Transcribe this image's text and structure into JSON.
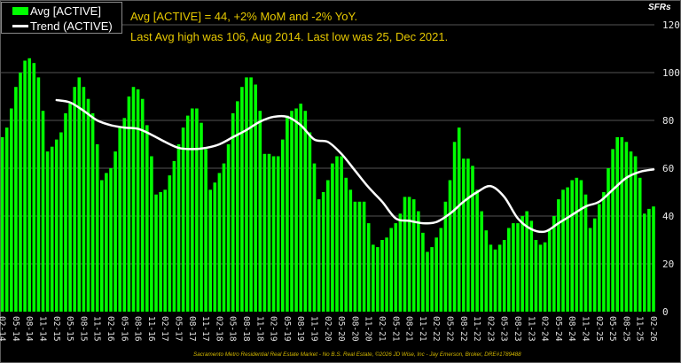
{
  "chart_data": {
    "type": "bar",
    "title_lines": [
      "Avg [ACTIVE] = 44, +2% MoM and -2% YoY.",
      "Last Avg high was 106, Aug 2014. Last low was 25, Dec 2021."
    ],
    "ylabel": "SFRs",
    "ylim": [
      0,
      120
    ],
    "yticks": [
      0,
      20,
      40,
      60,
      80,
      100,
      120
    ],
    "grid": true,
    "y_axis_side": "right",
    "legend_placement": "top-left",
    "colors": {
      "bar": "#00ff00",
      "trend": "#ffffff",
      "annotation": "#e6c800",
      "background": "#000000"
    },
    "categories": [
      "02-14",
      "03-14",
      "04-14",
      "05-14",
      "06-14",
      "07-14",
      "08-14",
      "09-14",
      "10-14",
      "11-14",
      "12-14",
      "01-15",
      "02-15",
      "03-15",
      "04-15",
      "05-15",
      "06-15",
      "07-15",
      "08-15",
      "09-15",
      "10-15",
      "11-15",
      "12-15",
      "01-16",
      "02-16",
      "03-16",
      "04-16",
      "05-16",
      "06-16",
      "07-16",
      "08-16",
      "09-16",
      "10-16",
      "11-16",
      "12-16",
      "01-17",
      "02-17",
      "03-17",
      "04-17",
      "05-17",
      "06-17",
      "07-17",
      "08-17",
      "09-17",
      "10-17",
      "11-17",
      "12-17",
      "01-18",
      "02-18",
      "03-18",
      "04-18",
      "05-18",
      "06-18",
      "07-18",
      "08-18",
      "09-18",
      "10-18",
      "11-18",
      "12-18",
      "01-19",
      "02-19",
      "03-19",
      "04-19",
      "05-19",
      "06-19",
      "07-19",
      "08-19",
      "09-19",
      "10-19",
      "11-19",
      "12-19",
      "01-20",
      "02-20",
      "03-20",
      "04-20",
      "05-20",
      "06-20",
      "07-20",
      "08-20",
      "09-20",
      "10-20",
      "11-20",
      "12-20",
      "01-21",
      "02-21",
      "03-21",
      "04-21",
      "05-21",
      "06-21",
      "07-21",
      "08-21",
      "09-21",
      "10-21",
      "11-21",
      "12-21",
      "01-22",
      "02-22",
      "03-22",
      "04-22",
      "05-22",
      "06-22",
      "07-22",
      "08-22",
      "09-22",
      "10-22",
      "11-22",
      "12-22",
      "01-23",
      "02-23",
      "03-23",
      "04-23",
      "05-23",
      "06-23",
      "07-23",
      "08-23",
      "09-23",
      "10-23",
      "11-23",
      "12-23",
      "01-24",
      "02-24",
      "03-24",
      "04-24",
      "05-24",
      "06-24",
      "07-24",
      "08-24",
      "09-24",
      "10-24",
      "11-24",
      "12-24",
      "01-25",
      "02-25",
      "03-25",
      "04-25",
      "05-25",
      "06-25",
      "07-25",
      "08-25",
      "09-25",
      "10-25",
      "11-25",
      "12-25",
      "01-26",
      "02-26"
    ],
    "series": [
      {
        "name": "Avg [ACTIVE]",
        "type": "bar",
        "values": [
          73,
          77,
          85,
          94,
          100,
          105,
          106,
          104,
          98,
          84,
          67,
          69,
          72,
          75,
          83,
          87,
          94,
          98,
          94,
          89,
          83,
          70,
          55,
          58,
          60,
          67,
          77,
          81,
          90,
          94,
          93,
          89,
          78,
          65,
          49,
          50,
          51,
          57,
          63,
          70,
          77,
          82,
          85,
          85,
          79,
          68,
          51,
          54,
          58,
          62,
          70,
          83,
          88,
          94,
          98,
          98,
          95,
          84,
          66,
          66,
          65,
          65,
          72,
          82,
          84,
          85,
          87,
          84,
          75,
          62,
          47,
          50,
          55,
          62,
          65,
          65,
          56,
          51,
          46,
          46,
          46,
          37,
          28,
          27,
          30,
          31,
          35,
          37,
          41,
          48,
          48,
          47,
          42,
          33,
          25,
          27,
          31,
          35,
          46,
          55,
          71,
          77,
          64,
          64,
          61,
          51,
          42,
          34,
          28,
          26,
          28,
          30,
          35,
          37,
          37,
          40,
          42,
          38,
          30,
          28,
          29,
          34,
          40,
          47,
          51,
          52,
          55,
          56,
          55,
          49,
          35,
          39,
          45,
          50,
          60,
          68,
          73,
          73,
          71,
          67,
          65,
          56,
          41,
          43,
          44
        ]
      },
      {
        "name": "Trend (ACTIVE)",
        "type": "line",
        "x": [
          "02-15",
          "05-15",
          "08-15",
          "11-15",
          "02-16",
          "05-16",
          "08-16",
          "11-16",
          "02-17",
          "05-17",
          "08-17",
          "11-17",
          "02-18",
          "05-18",
          "08-18",
          "11-18",
          "02-19",
          "05-19",
          "08-19",
          "11-19",
          "02-20",
          "05-20",
          "08-20",
          "11-20",
          "02-21",
          "05-21",
          "08-21",
          "11-21",
          "02-22",
          "05-22",
          "08-22",
          "11-22",
          "02-23",
          "05-23",
          "08-23",
          "11-23",
          "02-24",
          "05-24",
          "08-24",
          "11-24",
          "02-25",
          "05-25",
          "08-25",
          "11-25",
          "02-26"
        ],
        "values": [
          88.5,
          87.5,
          84,
          80,
          78,
          77,
          76.5,
          74,
          71,
          68.5,
          68,
          68.5,
          70,
          73,
          76,
          79.5,
          81.5,
          81.5,
          78,
          72,
          71,
          66,
          59,
          52,
          46,
          39,
          38,
          37,
          37.5,
          41,
          46,
          50,
          52.5,
          48,
          39,
          34.5,
          33.5,
          37,
          40.5,
          44,
          46,
          51,
          56,
          58.5,
          59.5
        ]
      }
    ],
    "x_tick_every": 3
  },
  "legend": {
    "bar_label": "Avg [ACTIVE]",
    "line_label": "Trend (ACTIVE)"
  },
  "footer": "Sacramento Metro Residential Real Estate Market - No B.S. Real Estate, ©2026 JD Wise, Inc - Jay Emerson, Broker, DRE#1789488"
}
